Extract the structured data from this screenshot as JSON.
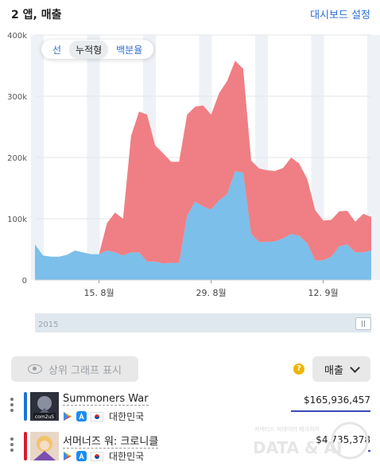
{
  "header": {
    "title": "2 앱, 매출",
    "dashboard_link": "대시보드 설정"
  },
  "toggle": {
    "options": [
      "선",
      "누적형",
      "백분율"
    ],
    "active": "누적형"
  },
  "chart_data": {
    "type": "area",
    "stacked": true,
    "y_ticks": [
      "0",
      "100k",
      "200k",
      "300k",
      "400k"
    ],
    "ylim": [
      0,
      400000
    ],
    "x_ticks": [
      "15. 8월",
      "29. 8월",
      "12. 9월"
    ],
    "x_tick_index": [
      8,
      22,
      36
    ],
    "grid": true,
    "weekend_shading": true,
    "series": [
      {
        "color": "#7bbfea",
        "values": [
          58000,
          40000,
          38000,
          38000,
          41000,
          48000,
          45000,
          42000,
          42000,
          48000,
          45000,
          40000,
          45000,
          45000,
          30000,
          30000,
          27000,
          28000,
          28000,
          105000,
          128000,
          120000,
          115000,
          130000,
          140000,
          178000,
          175000,
          75000,
          62000,
          62000,
          63000,
          68000,
          75000,
          72000,
          60000,
          32000,
          32000,
          38000,
          55000,
          58000,
          45000,
          45000,
          48000
        ]
      },
      {
        "color": "#ef7f84",
        "values": [
          0,
          0,
          0,
          0,
          0,
          0,
          0,
          0,
          0,
          45000,
          65000,
          60000,
          190000,
          230000,
          240000,
          190000,
          180000,
          165000,
          165000,
          165000,
          155000,
          165000,
          155000,
          175000,
          185000,
          180000,
          170000,
          120000,
          120000,
          117000,
          115000,
          115000,
          125000,
          118000,
          105000,
          82000,
          65000,
          60000,
          57000,
          55000,
          50000,
          63000,
          55000
        ]
      }
    ]
  },
  "navigator": {
    "year": "2015"
  },
  "controls": {
    "show_top_graph": "상위 그래프 표시",
    "metric": "매출",
    "help": "?"
  },
  "apps": [
    {
      "name": "Summoners War",
      "country": "대한민국",
      "revenue": "$165,936,457",
      "revenue_share": 1.0,
      "color": "#1e73d6",
      "icon_text": "com2uS"
    },
    {
      "name": "서머너즈 워: 크로니클",
      "country": "대한민국",
      "revenue": "$4,735,378",
      "revenue_share": 0.03,
      "color": "#d61e2e",
      "icon_text": ""
    }
  ],
  "watermark": {
    "line1": "커넥티드 빅데이터 메가히어",
    "line2": "DATA & AI"
  }
}
